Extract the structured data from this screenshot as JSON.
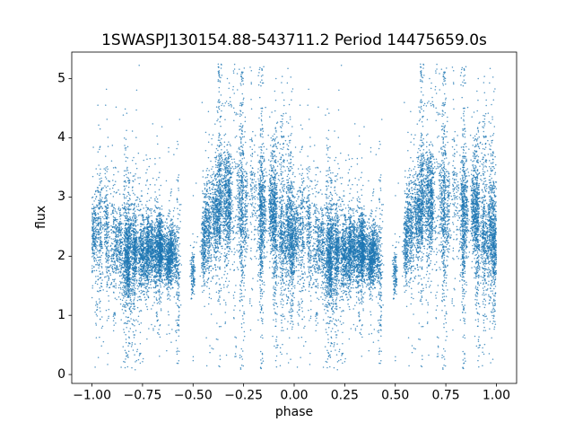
{
  "window": {
    "background": "#ffffff"
  },
  "chart_data": {
    "type": "scatter",
    "title": "1SWASPJ130154.88-543711.2 Period 14475659.0s",
    "xlabel": "phase",
    "ylabel": "flux",
    "xlim": [
      -1.1,
      1.1
    ],
    "ylim": [
      -0.15,
      5.45
    ],
    "xtick_values": [
      -1.0,
      -0.75,
      -0.5,
      -0.25,
      0.0,
      0.25,
      0.5,
      0.75,
      1.0
    ],
    "xtick_labels": [
      "−1.00",
      "−0.75",
      "−0.50",
      "−0.25",
      "0.00",
      "0.25",
      "0.50",
      "0.75",
      "1.00"
    ],
    "ytick_values": [
      0,
      1,
      2,
      3,
      4,
      5
    ],
    "ytick_labels": [
      "0",
      "1",
      "2",
      "3",
      "4",
      "5"
    ],
    "grid": false,
    "legend": null,
    "marker": {
      "color_rgb": [
        31,
        119,
        180
      ],
      "alpha": 0.78,
      "radius_px": 0.75
    },
    "structure": "phase-folded light curve; the folded cycle (phase 0-1) is plotted twice, at phase p and p-1, producing a dense streaky point cloud from -1.0 to 1.0",
    "n_points": 22000,
    "flux_range_observed": [
      0.08,
      5.25
    ],
    "phase_profile": {
      "phases": [
        0.0,
        0.05,
        0.1,
        0.15,
        0.2,
        0.25,
        0.3,
        0.35,
        0.4,
        0.45,
        0.5,
        0.55,
        0.6,
        0.65,
        0.7,
        0.75,
        0.8,
        0.85,
        0.9,
        0.95,
        1.0
      ],
      "mean_flux": [
        2.35,
        2.2,
        2.15,
        2.1,
        2.1,
        2.05,
        2.05,
        2.0,
        1.95,
        1.9,
        1.85,
        2.3,
        2.6,
        2.8,
        2.9,
        2.9,
        2.85,
        2.75,
        2.6,
        2.45,
        2.35
      ],
      "sigma": [
        0.3,
        0.3,
        0.32,
        0.32,
        0.3,
        0.28,
        0.28,
        0.26,
        0.24,
        0.22,
        0.2,
        0.35,
        0.4,
        0.42,
        0.42,
        0.4,
        0.38,
        0.36,
        0.34,
        0.3,
        0.3
      ],
      "density": [
        1.0,
        0.95,
        0.9,
        0.9,
        0.95,
        0.9,
        0.85,
        0.8,
        0.7,
        0.45,
        0.15,
        0.5,
        0.85,
        1.0,
        1.0,
        1.0,
        1.0,
        0.95,
        0.9,
        0.95,
        1.0
      ]
    },
    "streaks_per_cycle": 170,
    "streak_phase_jitter": 0.006,
    "rng_seed": 42
  }
}
